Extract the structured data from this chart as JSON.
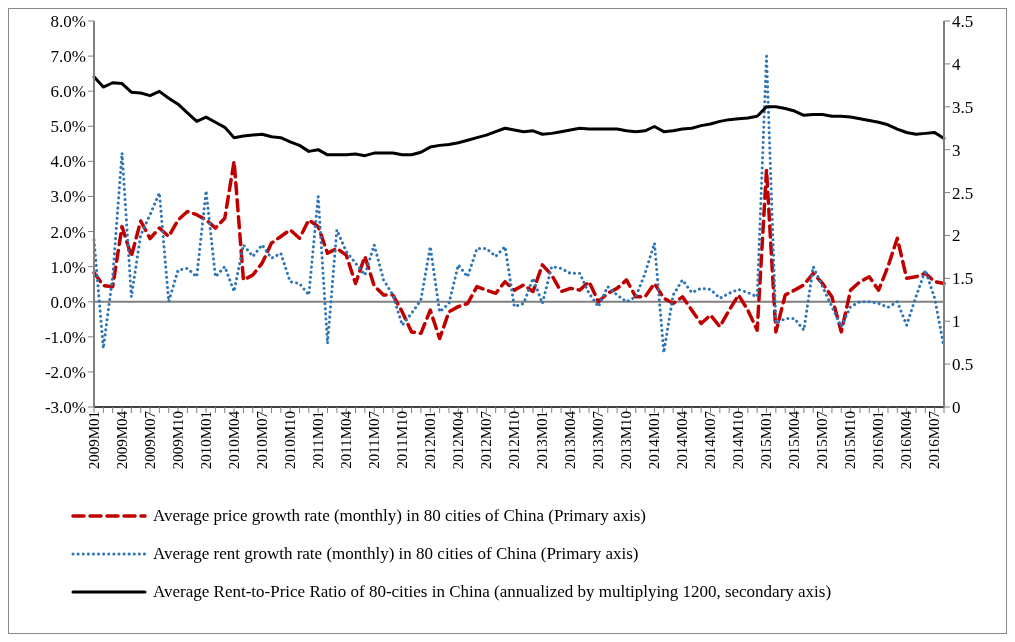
{
  "chart_data": {
    "type": "line",
    "categories": [
      "2009M01",
      null,
      null,
      "2009M04",
      null,
      null,
      "2009M07",
      null,
      null,
      "2009M10",
      null,
      null,
      "2010M01",
      null,
      null,
      "2010M04",
      null,
      null,
      "2010M07",
      null,
      null,
      "2010M10",
      null,
      null,
      "2011M01",
      null,
      null,
      "2011M04",
      null,
      null,
      "2011M07",
      null,
      null,
      "2011M10",
      null,
      null,
      "2012M01",
      null,
      null,
      "2012M04",
      null,
      null,
      "2012M07",
      null,
      null,
      "2012M10",
      null,
      null,
      "2013M01",
      null,
      null,
      "2013M04",
      null,
      null,
      "2013M07",
      null,
      null,
      "2013M10",
      null,
      null,
      "2014M01",
      null,
      null,
      "2014M04",
      null,
      null,
      "2014M07",
      null,
      null,
      "2014M10",
      null,
      null,
      "2015M01",
      null,
      null,
      "2015M04",
      null,
      null,
      "2015M07",
      null,
      null,
      "2015M10",
      null,
      null,
      "2016M01",
      null,
      null,
      "2016M04",
      null,
      null,
      "2016M07",
      null
    ],
    "series": [
      {
        "name": "Average price growth rate (monthly) in 80 cities of China (Primary axis)",
        "color": "#c00000",
        "line_style": "dashed",
        "values": [
          0.83,
          0.46,
          0.43,
          2.14,
          1.3,
          2.3,
          1.8,
          2.1,
          1.86,
          2.33,
          2.57,
          2.48,
          2.33,
          2.1,
          2.38,
          4.0,
          0.62,
          0.76,
          1.1,
          1.67,
          1.86,
          2.05,
          1.81,
          2.33,
          2.14,
          1.38,
          1.52,
          1.33,
          0.52,
          1.29,
          0.45,
          0.19,
          0.19,
          -0.29,
          -0.86,
          -0.9,
          -0.24,
          -1.05,
          -0.29,
          -0.14,
          -0.05,
          0.43,
          0.33,
          0.24,
          0.57,
          0.33,
          0.48,
          0.29,
          1.05,
          0.76,
          0.29,
          0.38,
          0.33,
          0.57,
          0.0,
          0.24,
          0.38,
          0.62,
          0.14,
          0.14,
          0.52,
          0.1,
          -0.05,
          0.14,
          -0.24,
          -0.62,
          -0.38,
          -0.71,
          -0.24,
          0.19,
          -0.24,
          -0.81,
          3.76,
          -0.86,
          0.19,
          0.33,
          0.48,
          0.81,
          0.52,
          0.14,
          -0.86,
          0.33,
          0.57,
          0.71,
          0.33,
          1.0,
          1.81,
          0.67,
          0.71,
          0.81,
          0.57,
          0.52
        ]
      },
      {
        "name": "Average rent growth rate (monthly) in 80 cities of China (Primary axis)",
        "color": "#2e75b6",
        "line_style": "dotted",
        "values": [
          1.76,
          -1.33,
          0.71,
          4.24,
          0.14,
          1.9,
          2.48,
          3.1,
          0.0,
          0.9,
          0.95,
          0.71,
          3.16,
          0.71,
          1.0,
          0.29,
          1.62,
          1.29,
          1.62,
          1.24,
          1.38,
          0.57,
          0.52,
          0.19,
          3.0,
          -1.19,
          2.05,
          1.43,
          1.1,
          0.76,
          1.62,
          0.62,
          0.19,
          -0.67,
          -0.33,
          0.05,
          1.57,
          -0.29,
          -0.05,
          1.05,
          0.71,
          1.52,
          1.52,
          1.29,
          1.57,
          -0.14,
          -0.05,
          0.67,
          -0.05,
          1.0,
          0.95,
          0.81,
          0.81,
          0.24,
          -0.14,
          0.43,
          0.19,
          0.0,
          0.14,
          0.81,
          1.67,
          -1.45,
          0.19,
          0.62,
          0.26,
          0.38,
          0.35,
          0.1,
          0.24,
          0.35,
          0.26,
          0.14,
          7.0,
          -0.62,
          -0.48,
          -0.48,
          -0.81,
          1.0,
          0.43,
          -0.14,
          -0.71,
          -0.14,
          0.0,
          0.0,
          -0.05,
          -0.16,
          0.0,
          -0.67,
          0.14,
          0.9,
          0.1,
          -1.29
        ]
      },
      {
        "name": "Average Rent-to-Price Ratio of 80-cities in China (annualized by multiplying 1200, secondary axis)",
        "color": "#000000",
        "line_style": "solid",
        "axis": "y2",
        "values": [
          3.85,
          3.73,
          3.78,
          3.77,
          3.67,
          3.66,
          3.63,
          3.68,
          3.6,
          3.53,
          3.43,
          3.33,
          3.38,
          3.32,
          3.26,
          3.14,
          3.16,
          3.17,
          3.18,
          3.15,
          3.14,
          3.09,
          3.05,
          2.98,
          3.0,
          2.94,
          2.94,
          2.94,
          2.95,
          2.93,
          2.96,
          2.96,
          2.96,
          2.94,
          2.94,
          2.97,
          3.03,
          3.05,
          3.06,
          3.08,
          3.11,
          3.14,
          3.17,
          3.21,
          3.25,
          3.23,
          3.21,
          3.22,
          3.18,
          3.19,
          3.21,
          3.23,
          3.25,
          3.24,
          3.24,
          3.24,
          3.24,
          3.22,
          3.21,
          3.22,
          3.27,
          3.21,
          3.22,
          3.24,
          3.25,
          3.28,
          3.3,
          3.33,
          3.35,
          3.36,
          3.37,
          3.39,
          3.5,
          3.5,
          3.48,
          3.45,
          3.4,
          3.41,
          3.41,
          3.39,
          3.39,
          3.38,
          3.36,
          3.34,
          3.32,
          3.29,
          3.24,
          3.2,
          3.18,
          3.19,
          3.2,
          3.13
        ]
      }
    ],
    "ylim": [
      -3,
      8
    ],
    "yticks": [
      {
        "value": -3,
        "label": "-3.0%"
      },
      {
        "value": -2,
        "label": "-2.0%"
      },
      {
        "value": -1,
        "label": "-1.0%"
      },
      {
        "value": 0,
        "label": "0.0%"
      },
      {
        "value": 1,
        "label": "1.0%"
      },
      {
        "value": 2,
        "label": "2.0%"
      },
      {
        "value": 3,
        "label": "3.0%"
      },
      {
        "value": 4,
        "label": "4.0%"
      },
      {
        "value": 5,
        "label": "5.0%"
      },
      {
        "value": 6,
        "label": "6.0%"
      },
      {
        "value": 7,
        "label": "7.0%"
      },
      {
        "value": 8,
        "label": "8.0%"
      }
    ],
    "y2lim": [
      0,
      4.5
    ],
    "y2ticks": [
      0,
      0.5,
      1,
      1.5,
      2,
      2.5,
      3,
      3.5,
      4,
      4.5
    ],
    "ref_lines": [
      {
        "axis": "y",
        "value": 0,
        "color": "#808080"
      }
    ],
    "legend": "bottom"
  }
}
